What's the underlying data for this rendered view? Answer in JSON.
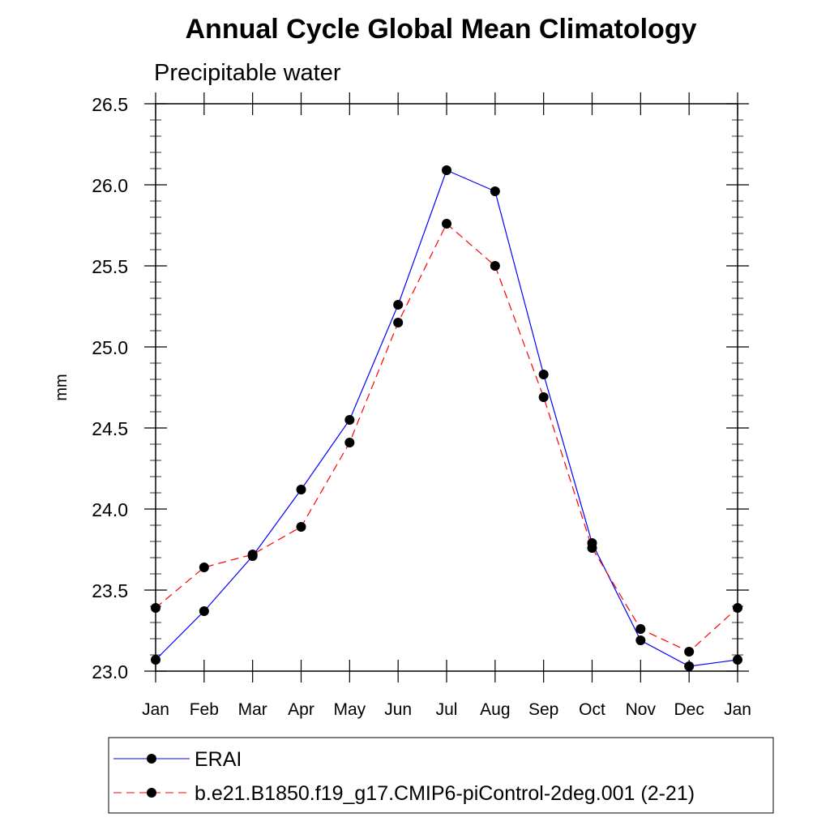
{
  "chart_data": {
    "type": "line",
    "title": "Annual Cycle Global Mean Climatology",
    "subtitle": "Precipitable water",
    "ylabel": "mm",
    "xlabel": "",
    "categories": [
      "Jan",
      "Feb",
      "Mar",
      "Apr",
      "May",
      "Jun",
      "Jul",
      "Aug",
      "Sep",
      "Oct",
      "Nov",
      "Dec",
      "Jan"
    ],
    "ylim": [
      23.0,
      26.5
    ],
    "yticks": [
      "23.0",
      "23.5",
      "24.0",
      "24.5",
      "25.0",
      "25.5",
      "26.0",
      "26.5"
    ],
    "grid": false,
    "legend_position": "bottom",
    "series": [
      {
        "name": "ERAI",
        "color": "#0000ff",
        "dash": "solid",
        "values": [
          23.07,
          23.37,
          23.71,
          24.12,
          24.55,
          25.26,
          26.09,
          25.96,
          24.83,
          23.79,
          23.19,
          23.03,
          23.07
        ]
      },
      {
        "name": "b.e21.B1850.f19_g17.CMIP6-piControl-2deg.001 (2-21)",
        "color": "#ff0000",
        "dash": "dashed",
        "values": [
          23.39,
          23.64,
          23.72,
          23.89,
          24.41,
          25.15,
          25.76,
          25.5,
          24.69,
          23.76,
          23.26,
          23.12,
          23.39
        ]
      }
    ]
  }
}
